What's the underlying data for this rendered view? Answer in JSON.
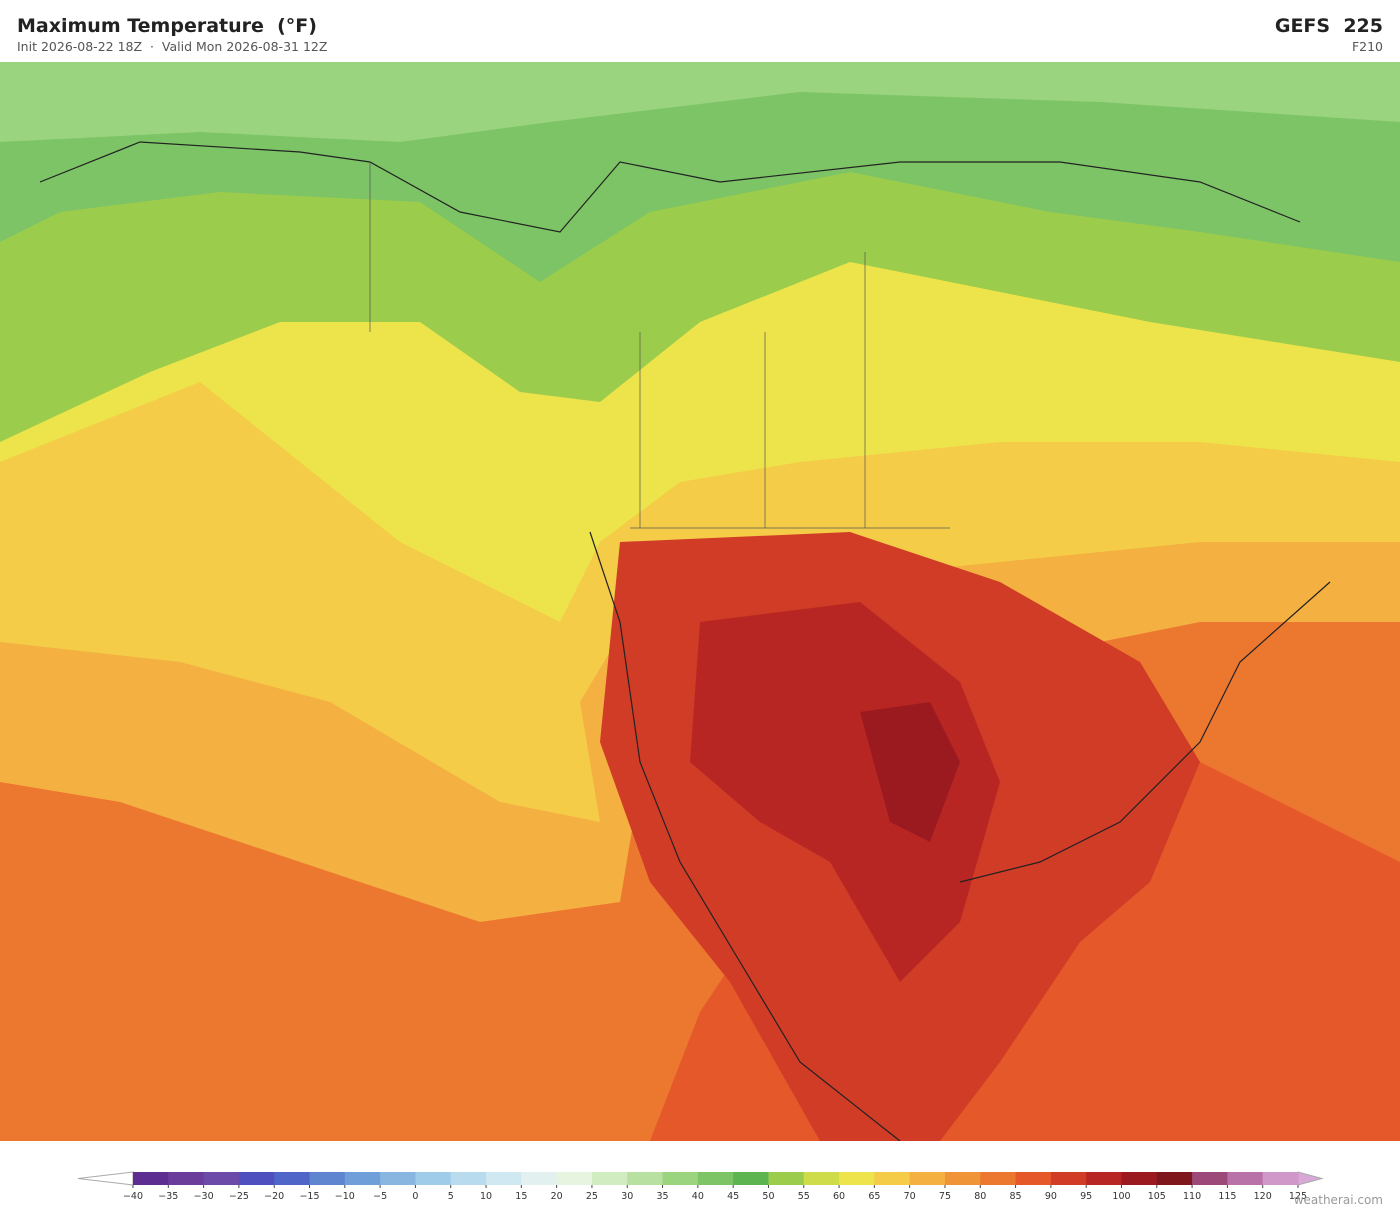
{
  "header": {
    "title": "Maximum Temperature  (°F)",
    "subtitle": "Init 2026-08-22 18Z  ·  Valid Mon 2026-08-31 12Z",
    "model": "GEFS  225",
    "forecast_hour": "F210"
  },
  "colorbar": {
    "ticks": [
      "−40",
      "−35",
      "−30",
      "−25",
      "−20",
      "−15",
      "−10",
      "−5",
      "0",
      "5",
      "10",
      "15",
      "20",
      "25",
      "30",
      "35",
      "40",
      "45",
      "50",
      "55",
      "60",
      "65",
      "70",
      "75",
      "80",
      "85",
      "90",
      "95",
      "100",
      "105",
      "110",
      "115",
      "120",
      "125"
    ],
    "colors": [
      "#5e2d91",
      "#6a3d9a",
      "#6b4aa8",
      "#4f4fc0",
      "#4f66c8",
      "#5f85d0",
      "#6f9ed8",
      "#88b6e0",
      "#9fcce8",
      "#b8dcee",
      "#cfe8f2",
      "#e2f1f0",
      "#e6f4e0",
      "#d0ecc0",
      "#b8e0a0",
      "#9bd47e",
      "#7cc466",
      "#5cb450",
      "#9ccc4c",
      "#cfdc4a",
      "#ece44a",
      "#f4cc48",
      "#f4b040",
      "#f09438",
      "#ec7830",
      "#e4582a",
      "#d03c26",
      "#b82624",
      "#9a1a20",
      "#7e161c",
      "#9c4878",
      "#b872a8",
      "#d098c8"
    ]
  },
  "footer": {
    "credit": "weatherai.com"
  }
}
